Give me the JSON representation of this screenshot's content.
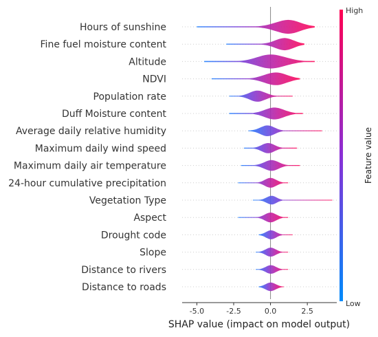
{
  "chart_data": {
    "type": "violin",
    "xlabel": "SHAP value (impact on model output)",
    "xlim": [
      -6.0,
      4.5
    ],
    "xticks": [
      "-5.0",
      "-2.5",
      "0.0",
      "2.5"
    ],
    "colorbar": {
      "label": "Feature value",
      "high": "High",
      "low": "Low",
      "color_high": "#ff0052",
      "color_low": "#008bfb"
    },
    "features": [
      {
        "name": "Hours of sunshine",
        "min": -5.0,
        "max": 3.0,
        "median": 1.0,
        "spread": 1.6,
        "skew": 0.3
      },
      {
        "name": "Fine fuel moisture content",
        "min": -3.0,
        "max": 2.3,
        "median": 0.8,
        "spread": 1.2,
        "skew": 0.4
      },
      {
        "name": "Altitude",
        "min": -4.5,
        "max": 3.0,
        "median": 0.2,
        "spread": 1.8,
        "skew": -0.2
      },
      {
        "name": "NDVI",
        "min": -4.0,
        "max": 2.0,
        "median": 0.3,
        "spread": 1.4,
        "skew": 0.1
      },
      {
        "name": "Population rate",
        "min": -2.8,
        "max": 1.5,
        "median": -0.8,
        "spread": 1.0,
        "skew": -0.3
      },
      {
        "name": "Duff Moisture content",
        "min": -2.8,
        "max": 2.2,
        "median": 0.3,
        "spread": 1.2,
        "skew": -0.1
      },
      {
        "name": "Average daily relative humidity",
        "min": -1.5,
        "max": 3.5,
        "median": -0.3,
        "spread": 0.9,
        "skew": 0.4
      },
      {
        "name": "Maximum daily wind speed",
        "min": -1.8,
        "max": 1.8,
        "median": -0.2,
        "spread": 0.8,
        "skew": 0.2
      },
      {
        "name": "Maximum daily air temperature",
        "min": -2.0,
        "max": 2.0,
        "median": 0.0,
        "spread": 0.9,
        "skew": 0.3
      },
      {
        "name": "24-hour cumulative precipitation",
        "min": -2.2,
        "max": 1.2,
        "median": 0.0,
        "spread": 0.7,
        "skew": 0.0
      },
      {
        "name": "Vegetation Type",
        "min": -1.2,
        "max": 4.2,
        "median": 0.0,
        "spread": 0.4,
        "skew": 0.6
      },
      {
        "name": "Aspect",
        "min": -2.2,
        "max": 1.2,
        "median": 0.0,
        "spread": 0.7,
        "skew": 0.0
      },
      {
        "name": "Drought code",
        "min": -0.8,
        "max": 1.5,
        "median": 0.0,
        "spread": 0.5,
        "skew": 0.3
      },
      {
        "name": "Slope",
        "min": -1.0,
        "max": 1.2,
        "median": 0.0,
        "spread": 0.5,
        "skew": 0.1
      },
      {
        "name": "Distance to rivers",
        "min": -1.0,
        "max": 1.2,
        "median": 0.0,
        "spread": 0.4,
        "skew": 0.2
      },
      {
        "name": "Distance to roads",
        "min": -0.8,
        "max": 0.9,
        "median": 0.0,
        "spread": 0.4,
        "skew": 0.1
      }
    ]
  }
}
